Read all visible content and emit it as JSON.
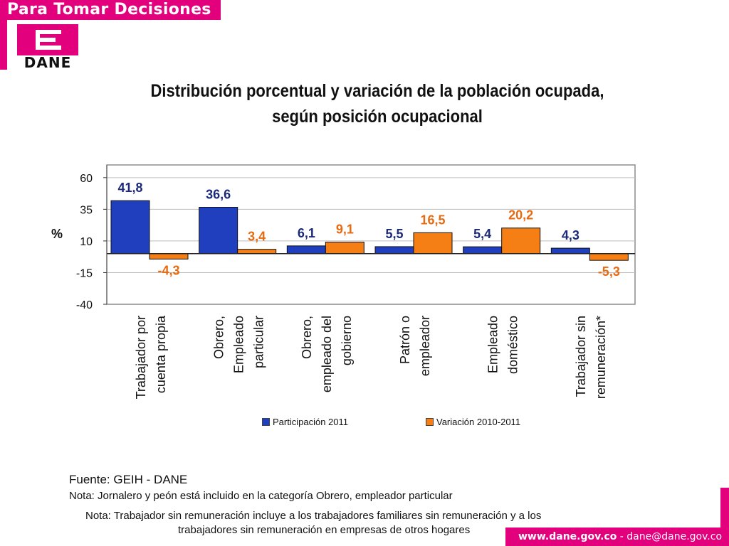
{
  "header": {
    "banner_text": "Para Tomar Decisiones",
    "logo_text": "DANE"
  },
  "title_line1": "Distribución porcentual y variación de la población ocupada,",
  "title_line2": "según posición ocupacional",
  "chart_data": {
    "type": "bar",
    "title": "Distribución porcentual y variación de la población ocupada, según posición ocupacional",
    "ylabel": "%",
    "ylim": [
      -40,
      70
    ],
    "yticks": [
      60,
      35,
      10,
      -15,
      -40
    ],
    "ytick_labels": [
      "60",
      "35",
      "10",
      "-15",
      "-40"
    ],
    "baseline": 0,
    "grid": true,
    "categories": [
      [
        "Trabajador por",
        "cuenta propia"
      ],
      [
        "Obrero,",
        "Empleado",
        "particular"
      ],
      [
        "Obrero,",
        "empleado del",
        "gobierno"
      ],
      [
        "Patrón o",
        "empleador"
      ],
      [
        "Empleado",
        "doméstico"
      ],
      [
        "Trabajador sin",
        "remuneración*"
      ]
    ],
    "series": [
      {
        "name": "Participación 2011",
        "values": [
          41.8,
          36.6,
          6.1,
          5.5,
          5.4,
          4.3
        ],
        "labels": [
          "41,8",
          "36,6",
          "6,1",
          "5,5",
          "5,4",
          "4,3"
        ],
        "color": "#1f3fbf",
        "label_color": "#1c2a7a"
      },
      {
        "name": "Variación 2010-2011",
        "values": [
          -4.3,
          3.4,
          9.1,
          16.5,
          20.2,
          -5.3
        ],
        "labels": [
          "-4,3",
          "3,4",
          "9,1",
          "16,5",
          "20,2",
          "-5,3"
        ],
        "color": "#f57f14",
        "label_color": "#e86a10"
      }
    ],
    "legend": [
      "Participación 2011",
      "Variación 2010-2011"
    ],
    "legend_position": "bottom"
  },
  "footer": {
    "source": "Fuente: GEIH - DANE",
    "note1": "Nota: Jornalero y peón está incluido en la categoría Obrero, empleador particular",
    "note2_line1": "Nota: Trabajador sin remuneración incluye a los trabajadores familiares sin remuneración y a los",
    "note2_line2": "trabajadores sin remuneración en empresas de otros hogares",
    "website": "www.dane.gov.co",
    "separator": " - ",
    "email": "dane@dane.gov.co"
  },
  "colors": {
    "brand": "#e3007d",
    "series1": "#1f3fbf",
    "series2": "#f57f14"
  }
}
